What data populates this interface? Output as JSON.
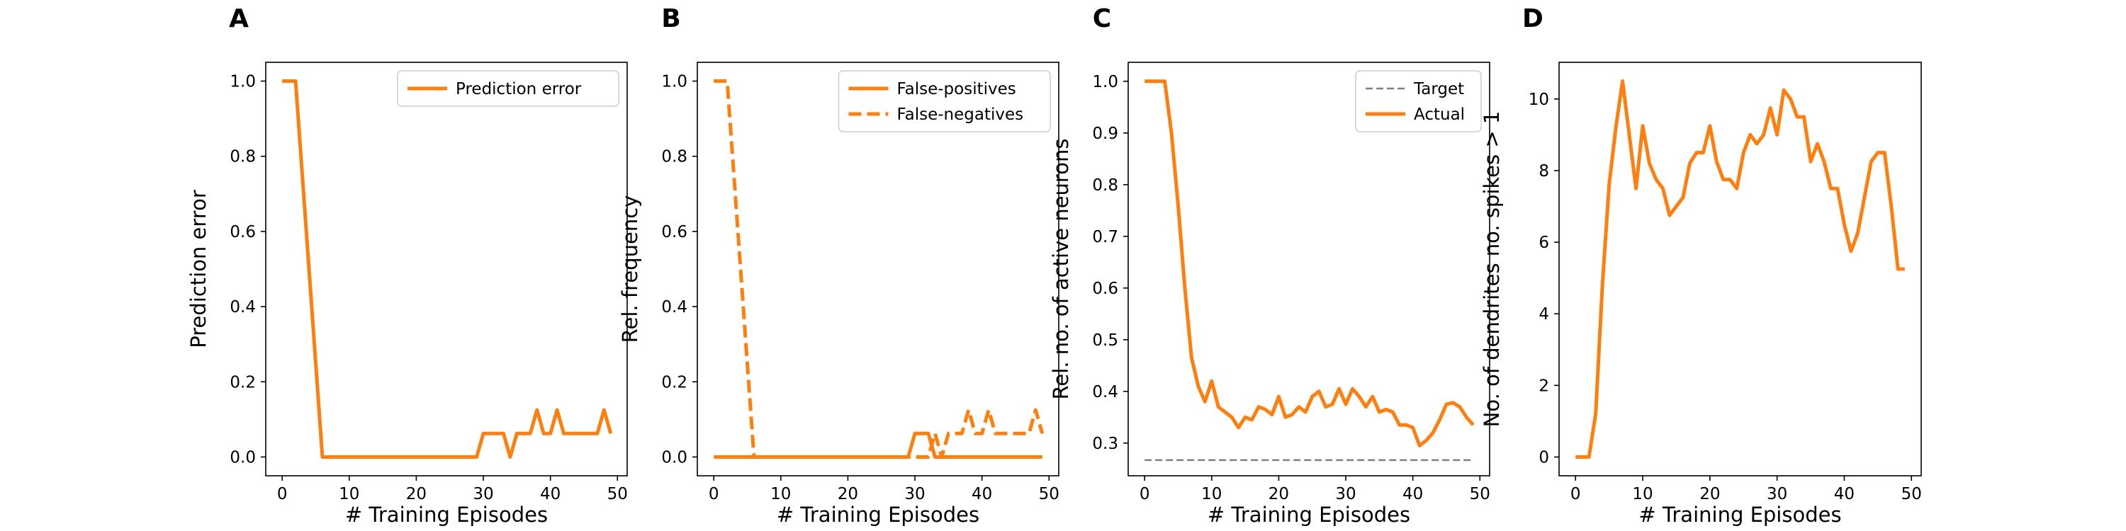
{
  "chart_data": [
    {
      "panel": "A",
      "type": "line",
      "xlabel": "# Training Episodes",
      "ylabel": "Prediction error",
      "xlim": [
        -2.45,
        51.45
      ],
      "ylim": [
        -0.05,
        1.05
      ],
      "xticks": [
        0,
        10,
        20,
        30,
        40,
        50
      ],
      "yticks": [
        0.0,
        0.2,
        0.4,
        0.6,
        0.8,
        1.0
      ],
      "ytick_labels": [
        "0.0",
        "0.2",
        "0.4",
        "0.6",
        "0.8",
        "1.0"
      ],
      "legend": "upper right",
      "grid": false,
      "series": [
        {
          "name": "Prediction error",
          "style": "solid",
          "color": "#ff7f0e",
          "x": [
            0,
            1,
            2,
            3,
            4,
            5,
            6,
            7,
            8,
            9,
            10,
            11,
            12,
            13,
            14,
            15,
            16,
            17,
            18,
            19,
            20,
            21,
            22,
            23,
            24,
            25,
            26,
            27,
            28,
            29,
            30,
            31,
            32,
            33,
            34,
            35,
            36,
            37,
            38,
            39,
            40,
            41,
            42,
            43,
            44,
            45,
            46,
            47,
            48,
            49
          ],
          "y": [
            1.0,
            1.0,
            1.0,
            0.75,
            0.5,
            0.25,
            0.0,
            0.0,
            0.0,
            0.0,
            0.0,
            0.0,
            0.0,
            0.0,
            0.0,
            0.0,
            0.0,
            0.0,
            0.0,
            0.0,
            0.0,
            0.0,
            0.0,
            0.0,
            0.0,
            0.0,
            0.0,
            0.0,
            0.0,
            0.0,
            0.0625,
            0.0625,
            0.0625,
            0.0625,
            0.0,
            0.0625,
            0.0625,
            0.0625,
            0.125,
            0.0625,
            0.0625,
            0.125,
            0.0625,
            0.0625,
            0.0625,
            0.0625,
            0.0625,
            0.0625,
            0.125,
            0.0625
          ]
        }
      ]
    },
    {
      "panel": "B",
      "type": "line",
      "xlabel": "# Training Episodes",
      "ylabel": "Rel. frequency",
      "xlim": [
        -2.45,
        51.45
      ],
      "ylim": [
        -0.05,
        1.05
      ],
      "xticks": [
        0,
        10,
        20,
        30,
        40,
        50
      ],
      "yticks": [
        0.0,
        0.2,
        0.4,
        0.6,
        0.8,
        1.0
      ],
      "ytick_labels": [
        "0.0",
        "0.2",
        "0.4",
        "0.6",
        "0.8",
        "1.0"
      ],
      "legend": "upper right",
      "grid": false,
      "series": [
        {
          "name": "False-positives",
          "style": "solid",
          "color": "#ff7f0e",
          "x": [
            0,
            1,
            2,
            3,
            4,
            5,
            6,
            7,
            8,
            9,
            10,
            11,
            12,
            13,
            14,
            15,
            16,
            17,
            18,
            19,
            20,
            21,
            22,
            23,
            24,
            25,
            26,
            27,
            28,
            29,
            30,
            31,
            32,
            33,
            34,
            35,
            36,
            37,
            38,
            39,
            40,
            41,
            42,
            43,
            44,
            45,
            46,
            47,
            48,
            49
          ],
          "y": [
            0,
            0,
            0,
            0,
            0,
            0,
            0,
            0,
            0,
            0,
            0,
            0,
            0,
            0,
            0,
            0,
            0,
            0,
            0,
            0,
            0,
            0,
            0,
            0,
            0,
            0,
            0,
            0,
            0,
            0,
            0.0625,
            0.0625,
            0.0625,
            0.0,
            0,
            0,
            0,
            0,
            0,
            0,
            0,
            0,
            0,
            0,
            0,
            0,
            0,
            0,
            0,
            0
          ]
        },
        {
          "name": "False-negatives",
          "style": "dashed",
          "color": "#ff7f0e",
          "x": [
            0,
            1,
            2,
            3,
            4,
            5,
            6,
            7,
            8,
            9,
            10,
            11,
            12,
            13,
            14,
            15,
            16,
            17,
            18,
            19,
            20,
            21,
            22,
            23,
            24,
            25,
            26,
            27,
            28,
            29,
            30,
            31,
            32,
            33,
            34,
            35,
            36,
            37,
            38,
            39,
            40,
            41,
            42,
            43,
            44,
            45,
            46,
            47,
            48,
            49
          ],
          "y": [
            1.0,
            1.0,
            1.0,
            0.75,
            0.5,
            0.25,
            0.0,
            0.0,
            0.0,
            0.0,
            0.0,
            0.0,
            0.0,
            0.0,
            0.0,
            0.0,
            0.0,
            0.0,
            0.0,
            0.0,
            0.0,
            0.0,
            0.0,
            0.0,
            0.0,
            0.0,
            0.0,
            0.0,
            0.0,
            0.0,
            0.0,
            0.0,
            0.0,
            0.0625,
            0.0,
            0.0625,
            0.0625,
            0.0625,
            0.125,
            0.0625,
            0.0625,
            0.125,
            0.0625,
            0.0625,
            0.0625,
            0.0625,
            0.0625,
            0.0625,
            0.125,
            0.0625
          ]
        }
      ]
    },
    {
      "panel": "C",
      "type": "line",
      "xlabel": "# Training Episodes",
      "ylabel": "Rel. no. of active neurons",
      "xlim": [
        -2.45,
        51.45
      ],
      "ylim": [
        0.2367,
        1.0367
      ],
      "xticks": [
        0,
        10,
        20,
        30,
        40,
        50
      ],
      "yticks": [
        0.3,
        0.4,
        0.5,
        0.6,
        0.7,
        0.8,
        0.9,
        1.0
      ],
      "ytick_labels": [
        "0.3",
        "0.4",
        "0.5",
        "0.6",
        "0.7",
        "0.8",
        "0.9",
        "1.0"
      ],
      "legend": "upper right",
      "grid": false,
      "series": [
        {
          "name": "Target",
          "style": "dashed-gray",
          "color": "#808080",
          "x": [
            0,
            49
          ],
          "y": [
            0.267,
            0.267
          ]
        },
        {
          "name": "Actual",
          "style": "solid",
          "color": "#ff7f0e",
          "x": [
            0,
            1,
            2,
            3,
            4,
            5,
            6,
            7,
            8,
            9,
            10,
            11,
            12,
            13,
            14,
            15,
            16,
            17,
            18,
            19,
            20,
            21,
            22,
            23,
            24,
            25,
            26,
            27,
            28,
            29,
            30,
            31,
            32,
            33,
            34,
            35,
            36,
            37,
            38,
            39,
            40,
            41,
            42,
            43,
            44,
            45,
            46,
            47,
            48,
            49
          ],
          "y": [
            1.0,
            1.0,
            1.0,
            1.0,
            0.9,
            0.76,
            0.6,
            0.465,
            0.41,
            0.38,
            0.42,
            0.37,
            0.36,
            0.35,
            0.33,
            0.35,
            0.345,
            0.37,
            0.365,
            0.355,
            0.39,
            0.35,
            0.355,
            0.37,
            0.36,
            0.39,
            0.4,
            0.37,
            0.375,
            0.405,
            0.375,
            0.405,
            0.39,
            0.37,
            0.39,
            0.36,
            0.365,
            0.36,
            0.335,
            0.335,
            0.33,
            0.295,
            0.305,
            0.32,
            0.345,
            0.375,
            0.378,
            0.37,
            0.35,
            0.335
          ]
        }
      ]
    },
    {
      "panel": "D",
      "type": "line",
      "xlabel": "# Training Episodes",
      "ylabel": "No. of dendrites no. spikes > 1",
      "xlim": [
        -2.45,
        51.45
      ],
      "ylim": [
        -0.525,
        11.025
      ],
      "xticks": [
        0,
        10,
        20,
        30,
        40,
        50
      ],
      "yticks": [
        0,
        2,
        4,
        6,
        8,
        10
      ],
      "ytick_labels": [
        "0",
        "2",
        "4",
        "6",
        "8",
        "10"
      ],
      "legend": "none",
      "grid": false,
      "series": [
        {
          "name": "",
          "style": "solid",
          "color": "#ff7f0e",
          "x": [
            0,
            1,
            2,
            3,
            4,
            5,
            6,
            7,
            8,
            9,
            10,
            11,
            12,
            13,
            14,
            15,
            16,
            17,
            18,
            19,
            20,
            21,
            22,
            23,
            24,
            25,
            26,
            27,
            28,
            29,
            30,
            31,
            32,
            33,
            34,
            35,
            36,
            37,
            38,
            39,
            40,
            41,
            42,
            43,
            44,
            45,
            46,
            47,
            48,
            49
          ],
          "y": [
            0,
            0,
            0,
            1.2,
            4.8,
            7.6,
            9.2,
            10.5,
            9.0,
            7.5,
            9.25,
            8.2,
            7.75,
            7.5,
            6.75,
            7.0,
            7.25,
            8.2,
            8.5,
            8.5,
            9.25,
            8.25,
            7.75,
            7.75,
            7.5,
            8.5,
            9.0,
            8.75,
            9.0,
            9.75,
            9.0,
            10.25,
            10.0,
            9.5,
            9.5,
            8.25,
            8.75,
            8.25,
            7.5,
            7.5,
            6.5,
            5.75,
            6.25,
            7.25,
            8.25,
            8.5,
            8.5,
            7.0,
            5.25,
            5.25
          ]
        }
      ]
    }
  ],
  "panels": [
    {
      "letter": "A"
    },
    {
      "letter": "B"
    },
    {
      "letter": "C"
    },
    {
      "letter": "D"
    }
  ]
}
